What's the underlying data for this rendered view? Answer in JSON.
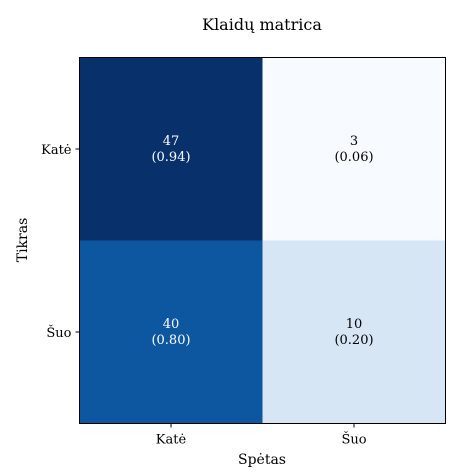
{
  "chart_data": {
    "type": "heatmap",
    "title": "Klaidų matrica",
    "xlabel": "Spėtas",
    "ylabel": "Tikras",
    "x_categories": [
      "Katė",
      "Šuo"
    ],
    "y_categories": [
      "Katė",
      "Šuo"
    ],
    "values": [
      [
        47,
        3
      ],
      [
        40,
        10
      ]
    ],
    "normalized": [
      [
        "(0.94)",
        "(0.06)"
      ],
      [
        "(0.80)",
        "(0.20)"
      ]
    ],
    "colors": [
      [
        "#08306b",
        "#f7fbff"
      ],
      [
        "#0d57a1",
        "#d6e6f4"
      ]
    ],
    "text_colors": [
      [
        "#ffffff",
        "#000000"
      ],
      [
        "#ffffff",
        "#000000"
      ]
    ]
  }
}
